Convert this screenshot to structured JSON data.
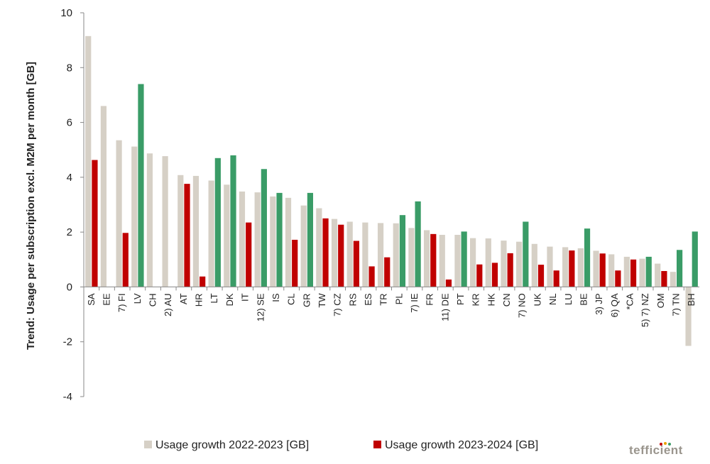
{
  "chart_data": {
    "type": "bar",
    "ylabel": "Trend: Usage per subscription excl. M2M per month [GB]",
    "ylim": [
      -4,
      10
    ],
    "yticks": [
      -4,
      -2,
      0,
      2,
      4,
      6,
      8,
      10
    ],
    "grid": false,
    "legend_position": "bottom",
    "categories": [
      "SA",
      "EE",
      "7) FI",
      "LV",
      "CH",
      "2) AU",
      "AT",
      "HR",
      "LT",
      "DK",
      "IT",
      "12) SE",
      "IS",
      "CL",
      "GR",
      "TW",
      "7) CZ",
      "RS",
      "ES",
      "TR",
      "PL",
      "7) IE",
      "FR",
      "11) DE",
      "PT",
      "KR",
      "HK",
      "CN",
      "7) NO",
      "UK",
      "NL",
      "LU",
      "BE",
      "3) JP",
      "6) QA",
      "*CA",
      "5) 7) NZ",
      "OM",
      "7) TN",
      "BH"
    ],
    "series": [
      {
        "name": "Usage growth 2022-2023 [GB]",
        "color": "#d6d0c6",
        "values": [
          9.15,
          6.6,
          5.35,
          5.12,
          4.87,
          4.77,
          4.08,
          4.05,
          3.88,
          3.73,
          3.48,
          3.45,
          3.3,
          3.25,
          2.97,
          2.87,
          2.48,
          2.38,
          2.35,
          2.33,
          2.32,
          2.15,
          2.07,
          1.9,
          1.9,
          1.78,
          1.77,
          1.69,
          1.65,
          1.57,
          1.47,
          1.45,
          1.41,
          1.32,
          1.19,
          1.1,
          1.03,
          0.85,
          0.55,
          -2.15
        ]
      },
      {
        "name": "Usage growth 2023-2024 [GB]",
        "color": "#c00000",
        "values": [
          4.63,
          null,
          1.97,
          null,
          null,
          null,
          3.76,
          0.38,
          null,
          null,
          2.35,
          null,
          null,
          1.72,
          null,
          2.5,
          2.27,
          1.68,
          0.75,
          1.08,
          null,
          null,
          1.93,
          0.27,
          null,
          0.82,
          0.88,
          1.23,
          null,
          0.81,
          0.6,
          1.33,
          null,
          1.22,
          0.6,
          1.0,
          null,
          0.58,
          null,
          null
        ]
      },
      {
        "name": "Usage growth 2023-2024 positive",
        "color": "#3a9c67",
        "values": [
          null,
          null,
          null,
          7.4,
          null,
          null,
          null,
          null,
          4.7,
          4.8,
          null,
          4.3,
          3.43,
          null,
          3.43,
          null,
          null,
          null,
          null,
          null,
          2.62,
          3.12,
          null,
          null,
          2.02,
          null,
          null,
          null,
          2.38,
          null,
          null,
          null,
          2.13,
          null,
          null,
          null,
          1.1,
          null,
          1.35,
          2.02
        ]
      }
    ]
  },
  "legend": {
    "items": [
      {
        "label": "Usage growth 2022-2023 [GB]",
        "color": "#d6d0c6"
      },
      {
        "label": "Usage growth 2023-2024 [GB]",
        "color": "#c00000"
      }
    ]
  },
  "brand": {
    "text": "tefficient",
    "dot_colors": [
      "#c00000",
      "#e8a400",
      "#3a9c67"
    ]
  }
}
